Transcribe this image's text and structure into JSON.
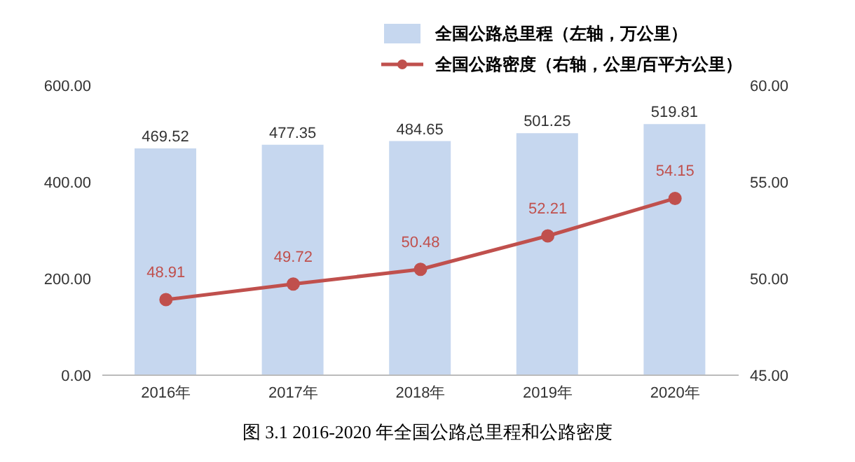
{
  "chart_data": {
    "type": "bar",
    "categories": [
      "2016年",
      "2017年",
      "2018年",
      "2019年",
      "2020年"
    ],
    "series": [
      {
        "name": "全国公路总里程（左轴，万公里）",
        "color": "#c6d7ef",
        "values": [
          469.52,
          477.35,
          484.65,
          501.25,
          519.81
        ]
      },
      {
        "name": "全国公路密度（右轴，公里/百平方公里）",
        "type": "line",
        "axis": "y2",
        "color": "#c0504d",
        "values": [
          48.91,
          49.72,
          50.48,
          52.21,
          54.15
        ]
      }
    ],
    "ylim": [
      0,
      600
    ],
    "yticks": [
      {
        "value": 0,
        "label": "0.00"
      },
      {
        "value": 200,
        "label": "200.00"
      },
      {
        "value": 400,
        "label": "400.00"
      },
      {
        "value": 600,
        "label": "600.00"
      }
    ],
    "y2lim": [
      45,
      60
    ],
    "y2ticks": [
      {
        "value": 45,
        "label": "45.00"
      },
      {
        "value": 50,
        "label": "50.00"
      },
      {
        "value": 55,
        "label": "55.00"
      },
      {
        "value": 60,
        "label": "60.00"
      }
    ],
    "data_labels": true,
    "legend": "top",
    "grid": false,
    "marker": "circle",
    "line_style": "solid",
    "annotations": [
      "图 3.1 2016-2020 年全国公路总里程和公路密度"
    ]
  }
}
